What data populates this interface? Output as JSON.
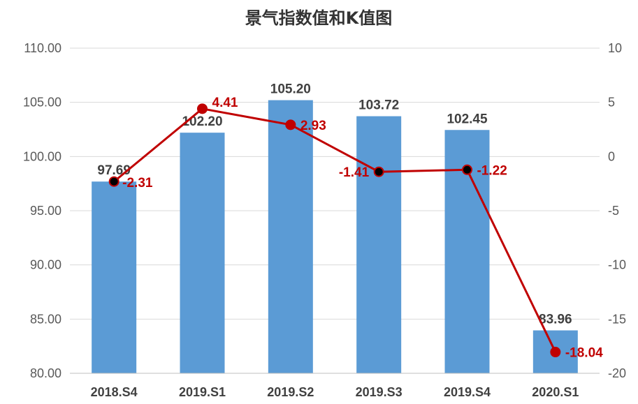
{
  "chart_data": {
    "type": "bar",
    "title": "景气指数值和K值图",
    "categories": [
      "2018.S4",
      "2019.S1",
      "2019.S2",
      "2019.S3",
      "2019.S4",
      "2020.S1"
    ],
    "series": [
      {
        "type": "bar",
        "axis": "left",
        "values": [
          97.69,
          102.2,
          105.2,
          103.72,
          102.45,
          83.96
        ],
        "labels": [
          "97.69",
          "102.20",
          "105.20",
          "103.72",
          "102.45",
          "83.96"
        ],
        "color": "#5B9BD5"
      },
      {
        "type": "line",
        "axis": "right",
        "values": [
          -2.31,
          4.41,
          2.93,
          -1.41,
          -1.22,
          -18.04
        ],
        "labels": [
          "-2.31",
          "4.41",
          "2.93",
          "-1.41",
          "-1.22",
          "-18.04"
        ],
        "color": "#C00000",
        "label_color": "#C00000",
        "marker_colors": [
          "#000000",
          "#C00000",
          "#C00000",
          "#000000",
          "#000000",
          "#C00000"
        ]
      }
    ],
    "y_left": {
      "min": 80,
      "max": 110,
      "step": 5,
      "ticks": [
        "110.00",
        "105.00",
        "100.00",
        "95.00",
        "90.00",
        "85.00",
        "80.00"
      ]
    },
    "y_right": {
      "min": -20,
      "max": 10,
      "step": 5,
      "ticks": [
        "10",
        "5",
        "0",
        "-5",
        "-10",
        "-15",
        "-20"
      ]
    },
    "grid": true,
    "legend": "none"
  }
}
